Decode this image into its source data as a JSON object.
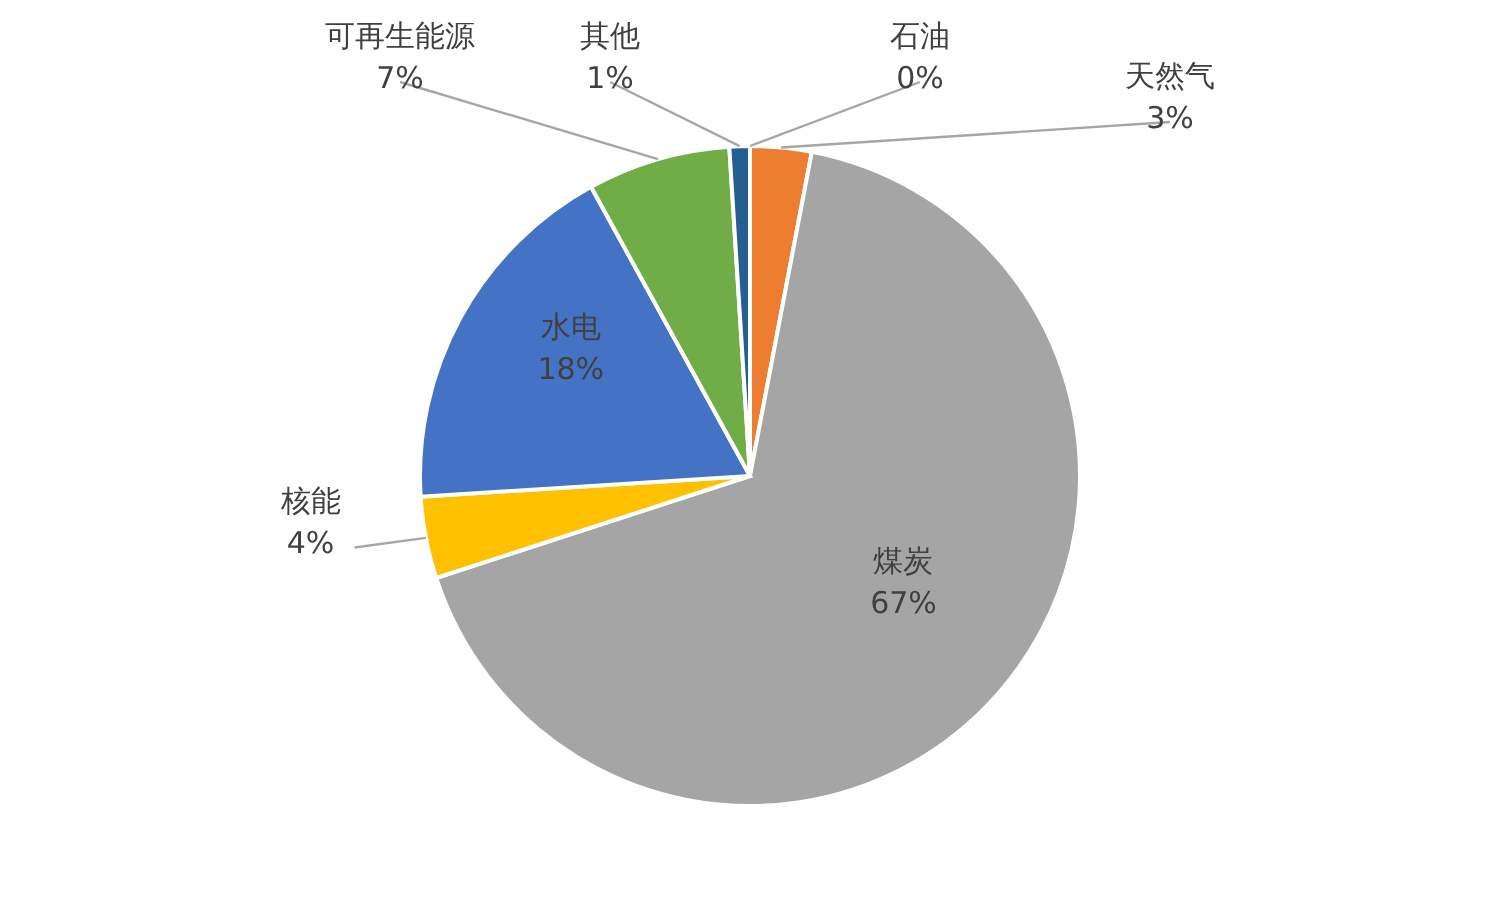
{
  "chart_data": {
    "type": "pie",
    "categories": [
      "石油",
      "天然气",
      "煤炭",
      "核能",
      "水电",
      "可再生能源",
      "其他"
    ],
    "values": [
      0,
      3,
      67,
      4,
      18,
      7,
      1
    ],
    "colors": [
      "#4472c4",
      "#ed7d31",
      "#a5a5a5",
      "#ffc000",
      "#4472c4",
      "#70ad47",
      "#255e91"
    ],
    "value_labels": [
      "0%",
      "3%",
      "67%",
      "4%",
      "18%",
      "7%",
      "1%"
    ],
    "legend": false
  }
}
